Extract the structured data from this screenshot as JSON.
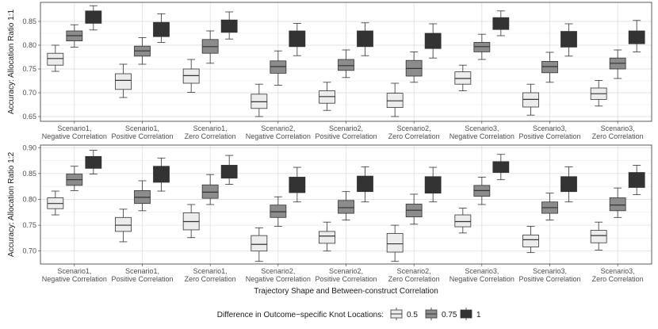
{
  "chart_data": {
    "type": "boxplot",
    "xlabel": "Trajectory Shape and Between-construct Correlation",
    "categories": [
      [
        "Scenario1,",
        "Negative Correlation"
      ],
      [
        "Scenario1,",
        "Positive Correlation"
      ],
      [
        "Scenario1,",
        "Zero Correlation"
      ],
      [
        "Scenario2,",
        "Negative Correlation"
      ],
      [
        "Scenario2,",
        "Positive Correlation"
      ],
      [
        "Scenario2,",
        "Zero Correlation"
      ],
      [
        "Scenario3,",
        "Negative Correlation"
      ],
      [
        "Scenario3,",
        "Positive Correlation"
      ],
      [
        "Scenario3,",
        "Zero Correlation"
      ]
    ],
    "legend": {
      "title": "Difference in Outcome−specific Knot Locations:",
      "position": "bottom",
      "entries": [
        {
          "label": "0.5",
          "color": "#ececec"
        },
        {
          "label": "0.75",
          "color": "#8c8c8c"
        },
        {
          "label": "1",
          "color": "#333333"
        }
      ]
    },
    "panels": [
      {
        "ylabel": "Accuracy: Allocation Ratio 1:1",
        "ylim": [
          0.64,
          0.89
        ],
        "yticks": [
          0.65,
          0.7,
          0.75,
          0.8,
          0.85
        ],
        "series": [
          {
            "name": "0.5",
            "boxes": [
              [
                0.745,
                0.758,
                0.772,
                0.783,
                0.8
              ],
              [
                0.69,
                0.707,
                0.726,
                0.74,
                0.76
              ],
              [
                0.701,
                0.72,
                0.736,
                0.75,
                0.77
              ],
              [
                0.65,
                0.667,
                0.681,
                0.697,
                0.718
              ],
              [
                0.663,
                0.678,
                0.692,
                0.704,
                0.722
              ],
              [
                0.65,
                0.669,
                0.683,
                0.699,
                0.72
              ],
              [
                0.704,
                0.718,
                0.73,
                0.744,
                0.758
              ],
              [
                0.653,
                0.67,
                0.686,
                0.7,
                0.718
              ],
              [
                0.672,
                0.686,
                0.698,
                0.71,
                0.726
              ]
            ]
          },
          {
            "name": "0.75",
            "boxes": [
              [
                0.796,
                0.809,
                0.82,
                0.83,
                0.843
              ],
              [
                0.76,
                0.777,
                0.788,
                0.798,
                0.816
              ],
              [
                0.762,
                0.783,
                0.797,
                0.812,
                0.83
              ],
              [
                0.716,
                0.741,
                0.755,
                0.767,
                0.788
              ],
              [
                0.732,
                0.747,
                0.757,
                0.77,
                0.79
              ],
              [
                0.722,
                0.735,
                0.751,
                0.768,
                0.786
              ],
              [
                0.77,
                0.786,
                0.797,
                0.806,
                0.823
              ],
              [
                0.722,
                0.742,
                0.755,
                0.766,
                0.785
              ],
              [
                0.73,
                0.75,
                0.762,
                0.773,
                0.79
              ]
            ]
          },
          {
            "name": "1",
            "boxes": [
              [
                0.832,
                0.846,
                0.86,
                0.872,
                0.883
              ],
              [
                0.806,
                0.818,
                0.833,
                0.848,
                0.866
              ],
              [
                0.813,
                0.827,
                0.84,
                0.853,
                0.87
              ],
              [
                0.778,
                0.797,
                0.812,
                0.83,
                0.846
              ],
              [
                0.778,
                0.797,
                0.812,
                0.83,
                0.847
              ],
              [
                0.773,
                0.793,
                0.808,
                0.825,
                0.845
              ],
              [
                0.82,
                0.833,
                0.847,
                0.858,
                0.872
              ],
              [
                0.777,
                0.796,
                0.812,
                0.829,
                0.845
              ],
              [
                0.786,
                0.803,
                0.816,
                0.83,
                0.852
              ]
            ]
          }
        ]
      },
      {
        "ylabel": "Accuracy: Allocation Ratio 1:2",
        "ylim": [
          0.675,
          0.905
        ],
        "yticks": [
          0.7,
          0.75,
          0.8,
          0.85,
          0.9
        ],
        "series": [
          {
            "name": "0.5",
            "boxes": [
              [
                0.77,
                0.782,
                0.792,
                0.803,
                0.816
              ],
              [
                0.718,
                0.738,
                0.75,
                0.765,
                0.781
              ],
              [
                0.726,
                0.741,
                0.757,
                0.774,
                0.79
              ],
              [
                0.68,
                0.7,
                0.713,
                0.73,
                0.745
              ],
              [
                0.7,
                0.715,
                0.729,
                0.738,
                0.756
              ],
              [
                0.68,
                0.698,
                0.714,
                0.734,
                0.75
              ],
              [
                0.735,
                0.747,
                0.757,
                0.77,
                0.783
              ],
              [
                0.697,
                0.708,
                0.722,
                0.731,
                0.748
              ],
              [
                0.702,
                0.716,
                0.73,
                0.74,
                0.756
              ]
            ]
          },
          {
            "name": "0.75",
            "boxes": [
              [
                0.817,
                0.827,
                0.838,
                0.849,
                0.864
              ],
              [
                0.778,
                0.792,
                0.804,
                0.817,
                0.836
              ],
              [
                0.79,
                0.802,
                0.814,
                0.828,
                0.848
              ],
              [
                0.748,
                0.765,
                0.776,
                0.789,
                0.805
              ],
              [
                0.76,
                0.773,
                0.784,
                0.798,
                0.815
              ],
              [
                0.752,
                0.766,
                0.779,
                0.791,
                0.81
              ],
              [
                0.79,
                0.806,
                0.817,
                0.827,
                0.843
              ],
              [
                0.76,
                0.773,
                0.784,
                0.795,
                0.812
              ],
              [
                0.765,
                0.778,
                0.789,
                0.803,
                0.822
              ]
            ]
          },
          {
            "name": "1",
            "boxes": [
              [
                0.849,
                0.86,
                0.872,
                0.883,
                0.895
              ],
              [
                0.816,
                0.833,
                0.847,
                0.864,
                0.88
              ],
              [
                0.829,
                0.841,
                0.855,
                0.866,
                0.885
              ],
              [
                0.795,
                0.813,
                0.826,
                0.843,
                0.862
              ],
              [
                0.795,
                0.815,
                0.829,
                0.845,
                0.863
              ],
              [
                0.795,
                0.812,
                0.826,
                0.844,
                0.862
              ],
              [
                0.838,
                0.852,
                0.862,
                0.873,
                0.887
              ],
              [
                0.795,
                0.815,
                0.829,
                0.844,
                0.863
              ],
              [
                0.809,
                0.823,
                0.835,
                0.852,
                0.866
              ]
            ]
          }
        ]
      }
    ]
  }
}
